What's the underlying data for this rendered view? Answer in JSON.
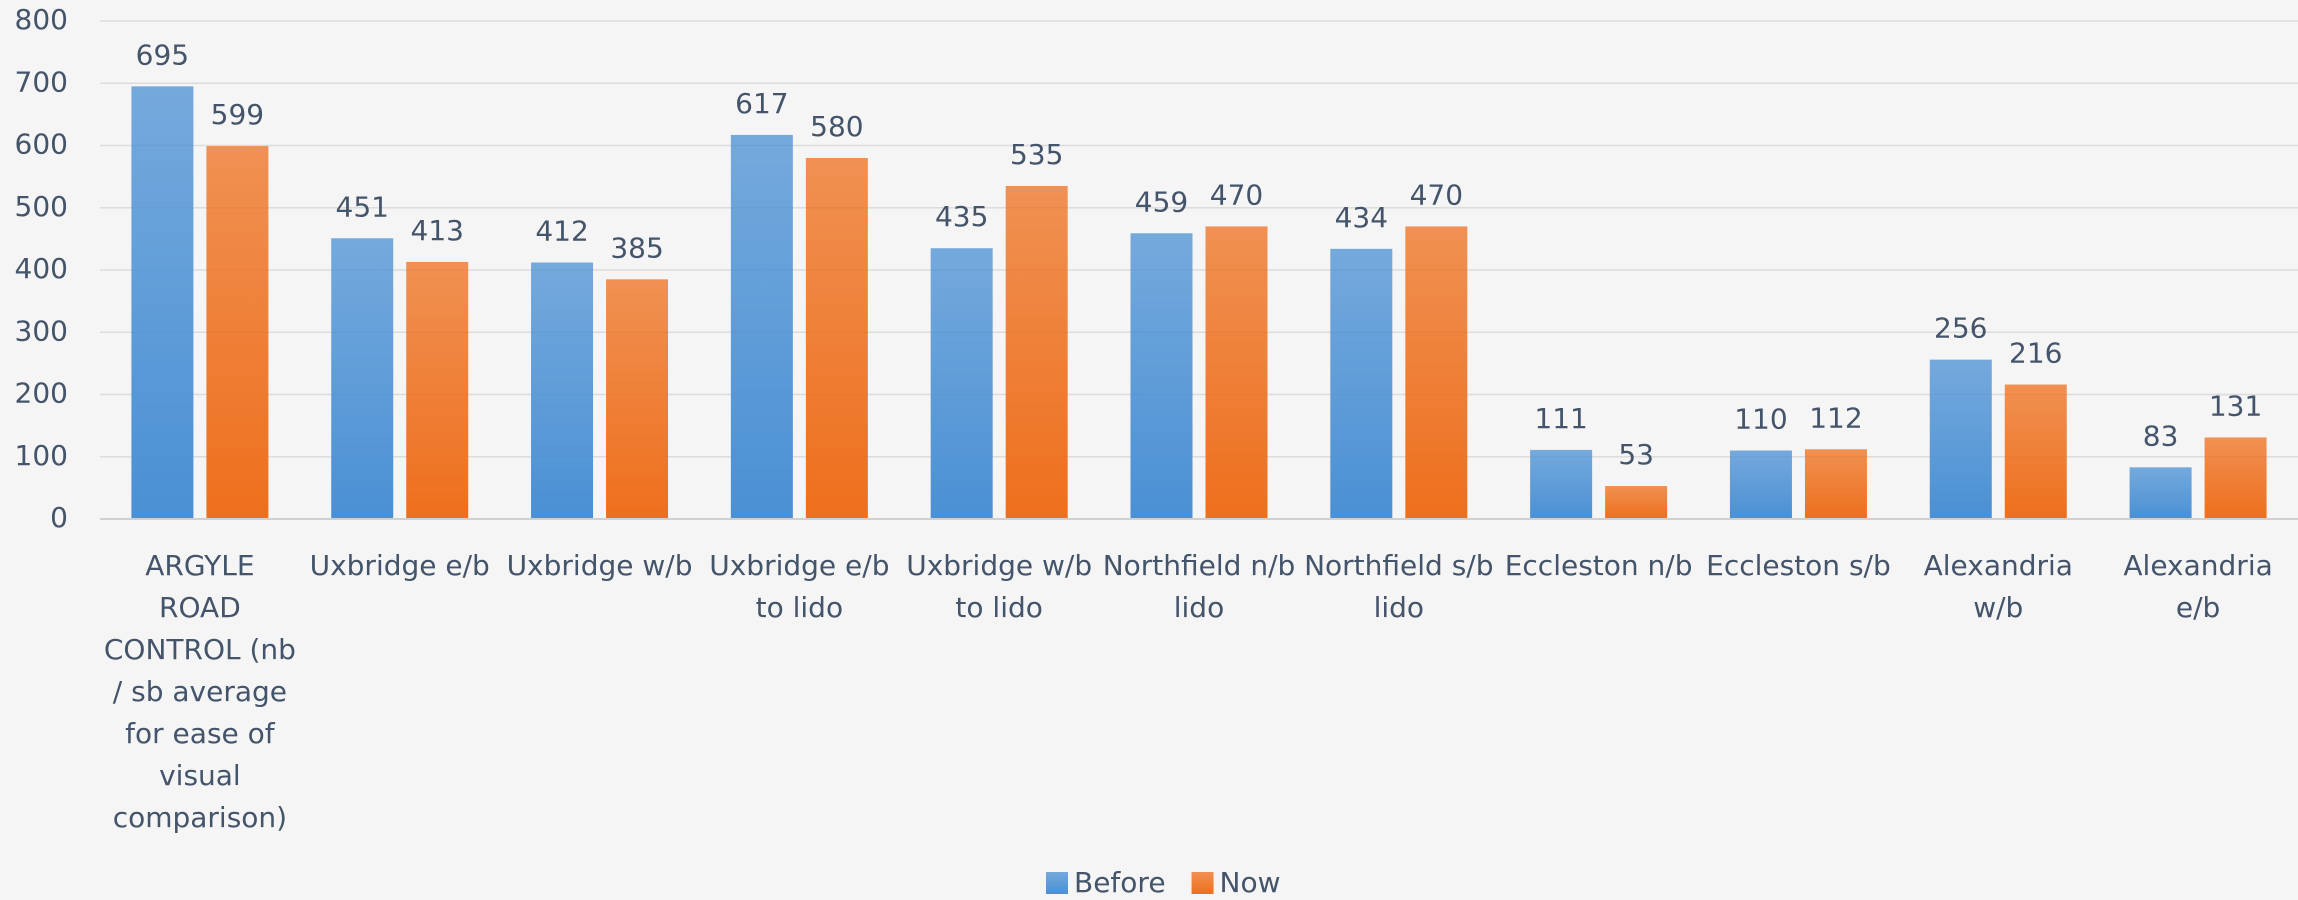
{
  "chart_data": {
    "type": "bar",
    "categories": [
      "ARGYLE ROAD CONTROL (nb / sb average for ease of visual comparison)",
      "Uxbridge e/b",
      "Uxbridge w/b",
      "Uxbridge e/b to lido",
      "Uxbridge w/b to lido",
      "Northfield n/b lido",
      "Northfield s/b lido",
      "Eccleston n/b",
      "Eccleston s/b",
      "Alexandria w/b",
      "Alexandria e/b"
    ],
    "series": [
      {
        "name": "Before",
        "color": "#4a90d4",
        "values": [
          695,
          451,
          412,
          617,
          435,
          459,
          434,
          111,
          110,
          256,
          83
        ]
      },
      {
        "name": "Now",
        "color": "#ee6f1c",
        "values": [
          599,
          413,
          385,
          580,
          535,
          470,
          470,
          53,
          112,
          216,
          131
        ]
      }
    ],
    "ylim": [
      0,
      800
    ],
    "yticks": [
      0,
      100,
      200,
      300,
      400,
      500,
      600,
      700,
      800
    ],
    "grid": true,
    "legend": "bottom"
  }
}
